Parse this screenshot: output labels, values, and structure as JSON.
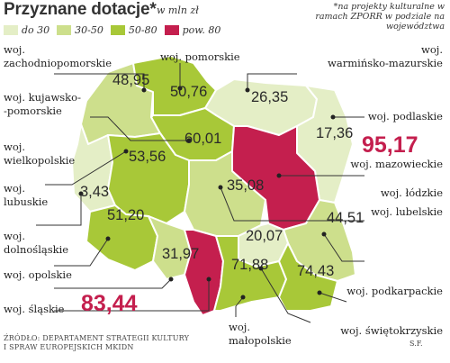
{
  "title": "Przyznane dotacje*",
  "unit": "w mln zł",
  "footnote": "*na projekty kulturalne w ramach ZPORR w podziale na województwa",
  "legend": {
    "items": [
      {
        "label": "do 30",
        "color": "#e4eec6"
      },
      {
        "label": "30-50",
        "color": "#cddf8c"
      },
      {
        "label": "50-80",
        "color": "#a8c838"
      },
      {
        "label": "pow. 80",
        "color": "#c41f4e"
      }
    ]
  },
  "voivodeships": {
    "zachodniopomorskie": {
      "label_line1": "woj.",
      "label_line2": "zachodniopomorskie",
      "value": "48,95",
      "category": "30-50"
    },
    "pomorskie": {
      "label": "woj. pomorskie",
      "value": "50,76",
      "category": "50-80"
    },
    "warminsko_mazurskie": {
      "label_line1": "woj.",
      "label_line2": "warmińsko-mazurskie",
      "value": "26,35",
      "category": "do 30"
    },
    "kujawsko_pomorskie": {
      "label_line1": "woj. kujawsko-",
      "label_line2": "-pomorskie",
      "value": "60,01",
      "category": "50-80"
    },
    "podlaskie": {
      "label": "woj. podlaskie",
      "value": "17,36",
      "category": "do 30"
    },
    "mazowieckie": {
      "label": "woj. mazowieckie",
      "value": "95,17",
      "category": "pow. 80"
    },
    "wielkopolskie": {
      "label_line1": "woj.",
      "label_line2": "wielkopolskie",
      "value": "53,56",
      "category": "50-80"
    },
    "lubuskie": {
      "label_line1": "woj.",
      "label_line2": "lubuskie",
      "value": "3,43",
      "category": "do 30"
    },
    "lodzkie": {
      "label": "woj. łódzkie",
      "value": "35,08",
      "category": "30-50"
    },
    "lubelskie": {
      "label": "woj. lubelskie",
      "value": "44,51",
      "category": "30-50"
    },
    "dolnoslaskie": {
      "label_line1": "woj.",
      "label_line2": "dolnośląskie",
      "value": "51,20",
      "category": "50-80"
    },
    "swietokrzyskie": {
      "label": "woj. świętokrzyskie",
      "value": "20,07",
      "category": "do 30"
    },
    "opolskie": {
      "label": "woj. opolskie",
      "value": "31,97",
      "category": "30-50"
    },
    "malopolskie": {
      "label_line1": "woj.",
      "label_line2": "małopolskie",
      "value": "71,88",
      "category": "50-80"
    },
    "podkarpackie": {
      "label": "woj. podkarpackie",
      "value": "74,43",
      "category": "50-80"
    },
    "slaskie": {
      "label": "woj. śląskie",
      "value": "83,44",
      "category": "pow. 80"
    }
  },
  "source_line1": "ŹRÓDŁO: DEPARTAMENT STRATEGII KULTURY",
  "source_line2": "I SPRAW EUROPEJSKICH MKIDN",
  "author": "S.F."
}
